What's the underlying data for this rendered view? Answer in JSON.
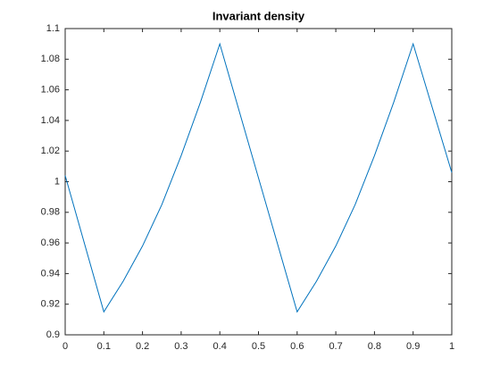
{
  "chart_data": {
    "type": "line",
    "title": "Invariant density",
    "x": [
      0,
      0.1,
      0.15,
      0.2,
      0.25,
      0.3,
      0.35,
      0.4,
      0.5,
      0.6,
      0.65,
      0.7,
      0.75,
      0.8,
      0.85,
      0.9,
      1
    ],
    "series": [
      {
        "color": "#0072bd",
        "values": [
          1.004,
          0.915,
          0.935,
          0.958,
          0.985,
          1.017,
          1.052,
          1.09,
          1.0025,
          0.915,
          0.935,
          0.958,
          0.985,
          1.017,
          1.052,
          1.09,
          1.006
        ]
      }
    ],
    "xlim": [
      0,
      1
    ],
    "xticks": [
      0,
      0.1,
      0.2,
      0.3,
      0.4,
      0.5,
      0.6,
      0.7,
      0.8,
      0.9,
      1
    ],
    "ylim": [
      0.9,
      1.1
    ],
    "yticks": [
      0.9,
      0.92,
      0.94,
      0.96,
      0.98,
      1,
      1.02,
      1.04,
      1.06,
      1.08,
      1.1
    ]
  }
}
